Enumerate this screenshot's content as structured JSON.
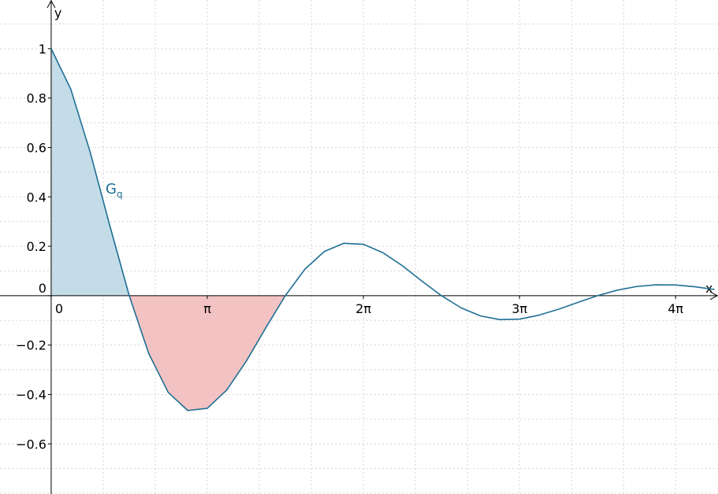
{
  "chart_data": {
    "type": "line",
    "x": [
      0,
      0.393,
      0.785,
      1.178,
      1.571,
      1.963,
      2.356,
      2.749,
      3.142,
      3.534,
      3.927,
      4.32,
      4.712,
      5.105,
      5.498,
      5.89,
      6.283,
      6.676,
      7.069,
      7.461,
      7.854,
      8.247,
      8.639,
      9.032,
      9.425,
      9.817,
      10.21,
      10.603,
      10.996,
      11.388,
      11.781,
      12.174,
      12.566,
      12.959,
      13.352
    ],
    "series": [
      {
        "name": "G",
        "name_subscript": "q",
        "color": "#1f6f94",
        "values": [
          1,
          0.837,
          0.581,
          0.285,
          0,
          -0.234,
          -0.392,
          -0.465,
          -0.456,
          -0.382,
          -0.265,
          -0.13,
          0,
          0.107,
          0.179,
          0.212,
          0.208,
          0.174,
          0.121,
          0.059,
          0,
          -0.049,
          -0.082,
          -0.097,
          -0.095,
          -0.079,
          -0.055,
          -0.027,
          0,
          0.022,
          0.037,
          0.044,
          0.043,
          0.036,
          0.025
        ]
      }
    ],
    "shaded": [
      {
        "range": [
          0,
          1.571
        ],
        "color": "#bcd8e4"
      },
      {
        "range": [
          1.571,
          4.712
        ],
        "color": "#f2bcbc"
      }
    ],
    "xlabel": "x",
    "ylabel": "y",
    "xlim": [
      -1.03,
      13.42
    ],
    "ylim": [
      -0.803,
      1.197
    ],
    "xticks": [
      0,
      {
        "value": 3.142,
        "label": "π"
      },
      {
        "value": 6.283,
        "label": "2π"
      },
      {
        "value": 9.425,
        "label": "3π"
      },
      {
        "value": 12.566,
        "label": "4π"
      }
    ],
    "yticks": [
      {
        "value": -0.6,
        "label": "−0.6"
      },
      {
        "value": -0.4,
        "label": "−0.4"
      },
      {
        "value": -0.2,
        "label": "−0.2"
      },
      0,
      0.2,
      0.4,
      0.6,
      0.8,
      1
    ],
    "grid": true
  }
}
